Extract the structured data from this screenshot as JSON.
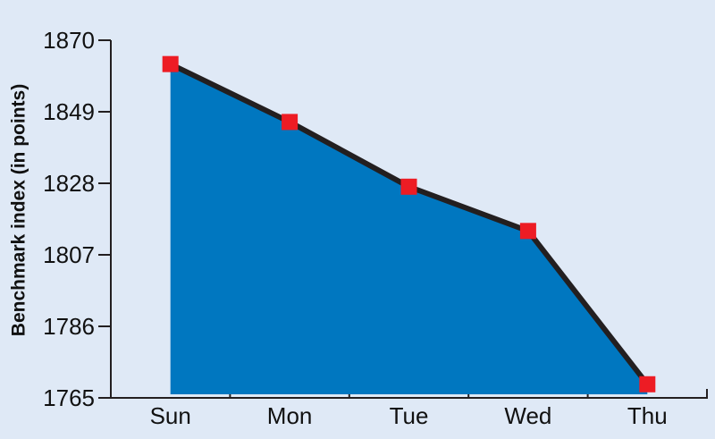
{
  "chart_data": {
    "type": "area",
    "y_label": "Benchmark index (in points)",
    "categories": [
      "Sun",
      "Mon",
      "Tue",
      "Wed",
      "Thu"
    ],
    "values": [
      1863,
      1846,
      1827,
      1814,
      1769
    ],
    "color": "#0077c0",
    "line_color": "#231f20",
    "marker_color": "#ed1c24",
    "ylim": [
      1765,
      1870
    ],
    "yticks": [
      1765,
      1786,
      1807,
      1828,
      1849,
      1870
    ]
  }
}
